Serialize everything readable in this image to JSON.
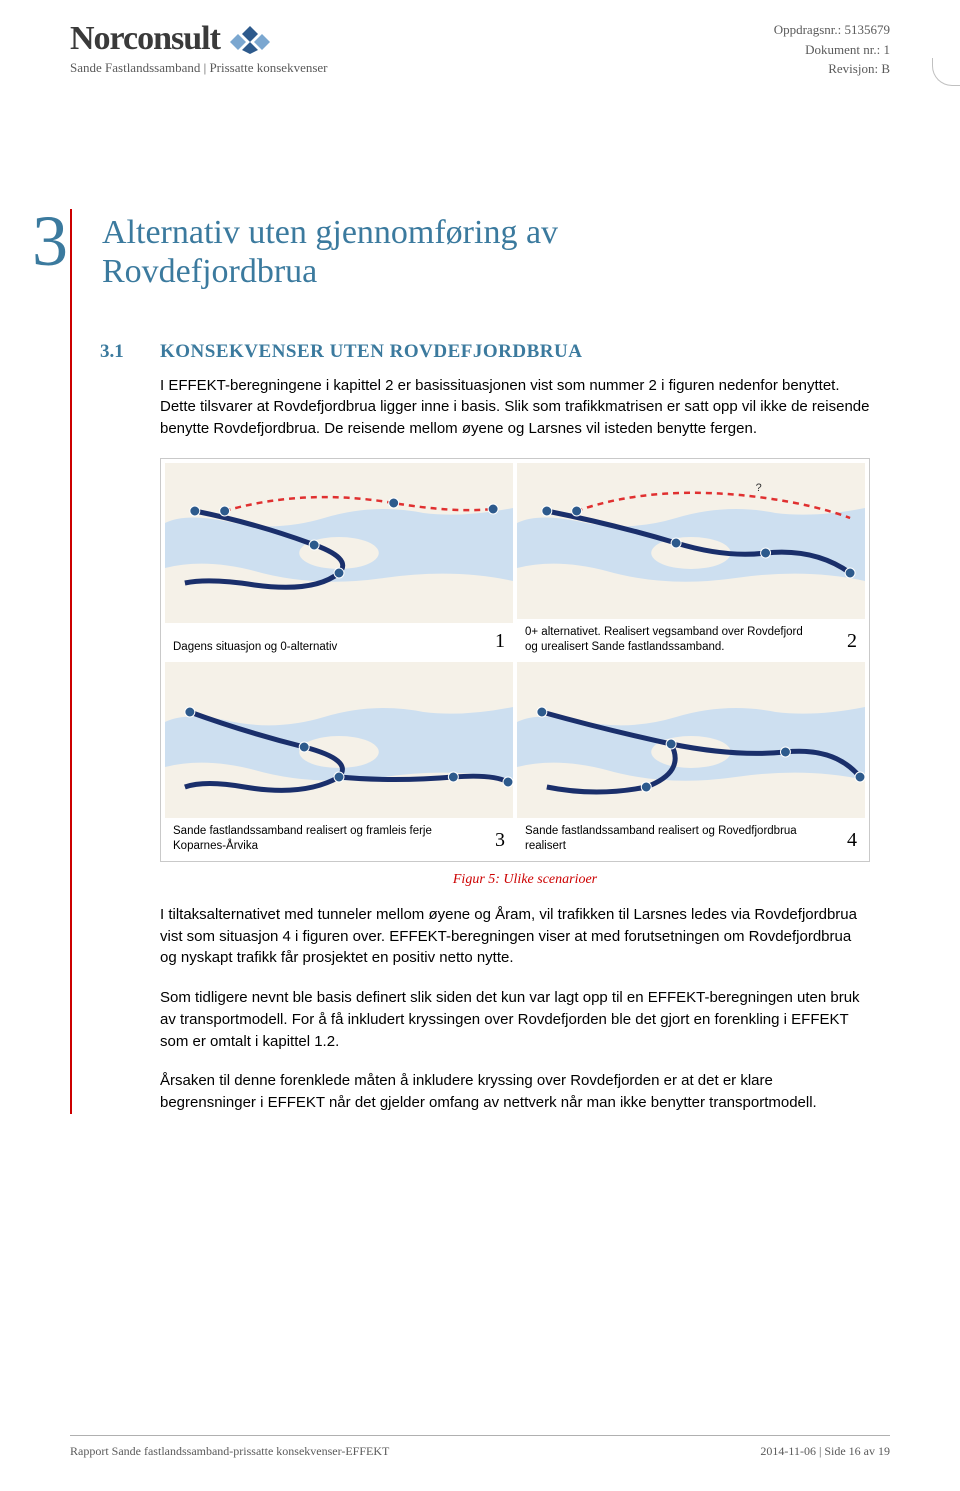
{
  "header": {
    "logo_text": "Norconsult",
    "subheader": "Sande Fastlandssamband | Prissatte konsekvenser",
    "logo_colors": {
      "dark": "#2d5a8c",
      "light": "#7ba7d0"
    }
  },
  "meta": {
    "line1": "Oppdragsnr.: 5135679",
    "line2": "Dokument nr.: 1",
    "line3": "Revisjon: B"
  },
  "chapter": {
    "number": "3",
    "title": "Alternativ uten gjennomføring av Rovdefjordbrua"
  },
  "section": {
    "number": "3.1",
    "title": "KONSEKVENSER UTEN ROVDEFJORDBRUA"
  },
  "paragraphs": {
    "p1": "I EFFEKT-beregningene i kapittel 2 er basissituasjonen vist som nummer 2 i figuren nedenfor benyttet. Dette tilsvarer at Rovdefjordbrua ligger inne i basis. Slik som trafikkmatrisen er satt opp vil ikke de reisende benytte Rovdefjordbrua. De reisende mellom øyene og Larsnes vil isteden benytte fergen.",
    "p2": "I tiltaksalternativet med tunneler mellom øyene og Åram, vil trafikken til Larsnes ledes via Rovdefjordbrua vist som situasjon 4 i figuren over. EFFEKT-beregningen viser at med forutsetningen om Rovdefjordbrua og nyskapt trafikk får prosjektet en positiv netto nytte.",
    "p3": "Som tidligere nevnt ble basis definert slik siden det kun var lagt opp til en EFFEKT-beregningen uten bruk av transportmodell. For å få inkludert kryssingen over Rovdefjorden ble det gjort en forenkling i EFFEKT som er omtalt i kapittel 1.2.",
    "p4": "Årsaken til denne forenklede måten å inkludere kryssing over Rovdefjorden er at det er klare begrensninger i EFFEKT når det gjelder omfang av nettverk når man ikke benytter transportmodell."
  },
  "figure": {
    "caption": "Figur 5: Ulike scenarioer",
    "panels": [
      {
        "num": "1",
        "cap": "Dagens situasjon og 0-alternativ",
        "dashed": true,
        "solid": true,
        "variant": 1
      },
      {
        "num": "2",
        "cap": "0+ alternativet. Realisert vegsamband over Rovdefjord og urealisert Sande fastlandssamband.",
        "dashed": true,
        "solid": true,
        "variant": 2
      },
      {
        "num": "3",
        "cap": "Sande fastlandssamband realisert og framleis ferje Koparnes-Årvika",
        "dashed": false,
        "solid": true,
        "variant": 3
      },
      {
        "num": "4",
        "cap": "Sande fastlandssamband realisert og Rovedfjordbrua realisert",
        "dashed": false,
        "solid": true,
        "variant": 4
      }
    ],
    "colors": {
      "water": "#cddff0",
      "land": "#f5f1e8",
      "route_solid": "#1a2f6b",
      "route_dashed": "#e03030",
      "node": "#2d5a8c",
      "panel_border": "#c9c9c9"
    }
  },
  "footer": {
    "left": "Rapport Sande fastlandssamband-prissatte konsekvenser-EFFEKT",
    "right": "2014-11-06 | Side 16 av 19"
  }
}
